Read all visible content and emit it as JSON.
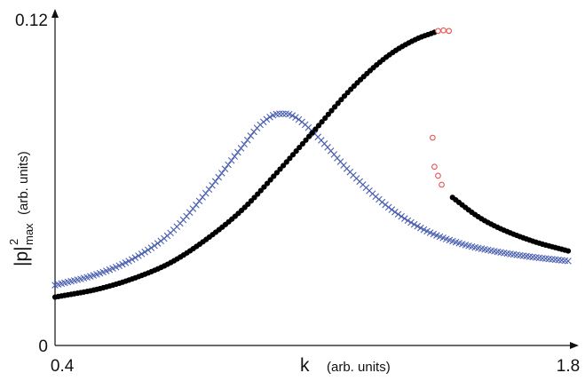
{
  "chart_data": {
    "type": "scatter",
    "title": "",
    "xlabel": "k",
    "xlabel_unit": "(arb. units)",
    "ylabel_main": "|p|",
    "ylabel_sup": "2",
    "ylabel_sub": "max",
    "ylabel_unit": "(arb. units)",
    "xlim": [
      0.38,
      1.8
    ],
    "ylim": [
      0,
      0.12
    ],
    "x_tick_labels": [
      "0.4",
      "1.8"
    ],
    "x_ticks": [
      0.4,
      1.8
    ],
    "y_tick_labels": [
      "0",
      "0.12"
    ],
    "y_ticks": [
      0,
      0.12
    ],
    "grid": false,
    "legend": "none",
    "series": [
      {
        "marker": "x",
        "color": "#4a5fb0",
        "x_range": [
          0.38,
          1.8
        ],
        "x": [
          0.38,
          0.5,
          0.6,
          0.7,
          0.8,
          0.9,
          0.95,
          1.0,
          1.02,
          1.05,
          1.1,
          1.2,
          1.3,
          1.4,
          1.5,
          1.6,
          1.7,
          1.8
        ],
        "y": [
          0.0222,
          0.0264,
          0.0322,
          0.0415,
          0.0565,
          0.0735,
          0.0815,
          0.0853,
          0.0853,
          0.0836,
          0.0778,
          0.0634,
          0.0512,
          0.0427,
          0.0376,
          0.0346,
          0.0326,
          0.0311
        ]
      },
      {
        "marker": "filled-circle",
        "color": "#000000",
        "segments": [
          {
            "x_range": [
              0.38,
              1.43
            ],
            "x": [
              0.38,
              0.5,
              0.6,
              0.7,
              0.8,
              0.9,
              1.0,
              1.1,
              1.2,
              1.3,
              1.38,
              1.43
            ],
            "y": [
              0.0178,
              0.0208,
              0.0248,
              0.0305,
              0.0392,
              0.0502,
              0.0645,
              0.0795,
              0.0945,
              0.1065,
              0.1128,
              0.1153
            ]
          },
          {
            "x_range": [
              1.48,
              1.8
            ],
            "x": [
              1.48,
              1.55,
              1.6,
              1.7,
              1.8
            ],
            "y": [
              0.0545,
              0.0475,
              0.0438,
              0.0385,
              0.0348
            ]
          }
        ]
      },
      {
        "marker": "open-circle",
        "color": "#e8524f",
        "x": [
          1.44,
          1.455,
          1.47,
          1.425,
          1.43,
          1.44,
          1.45
        ],
        "y": [
          0.1158,
          0.116,
          0.1158,
          0.0765,
          0.0658,
          0.0625,
          0.0592
        ]
      }
    ]
  }
}
